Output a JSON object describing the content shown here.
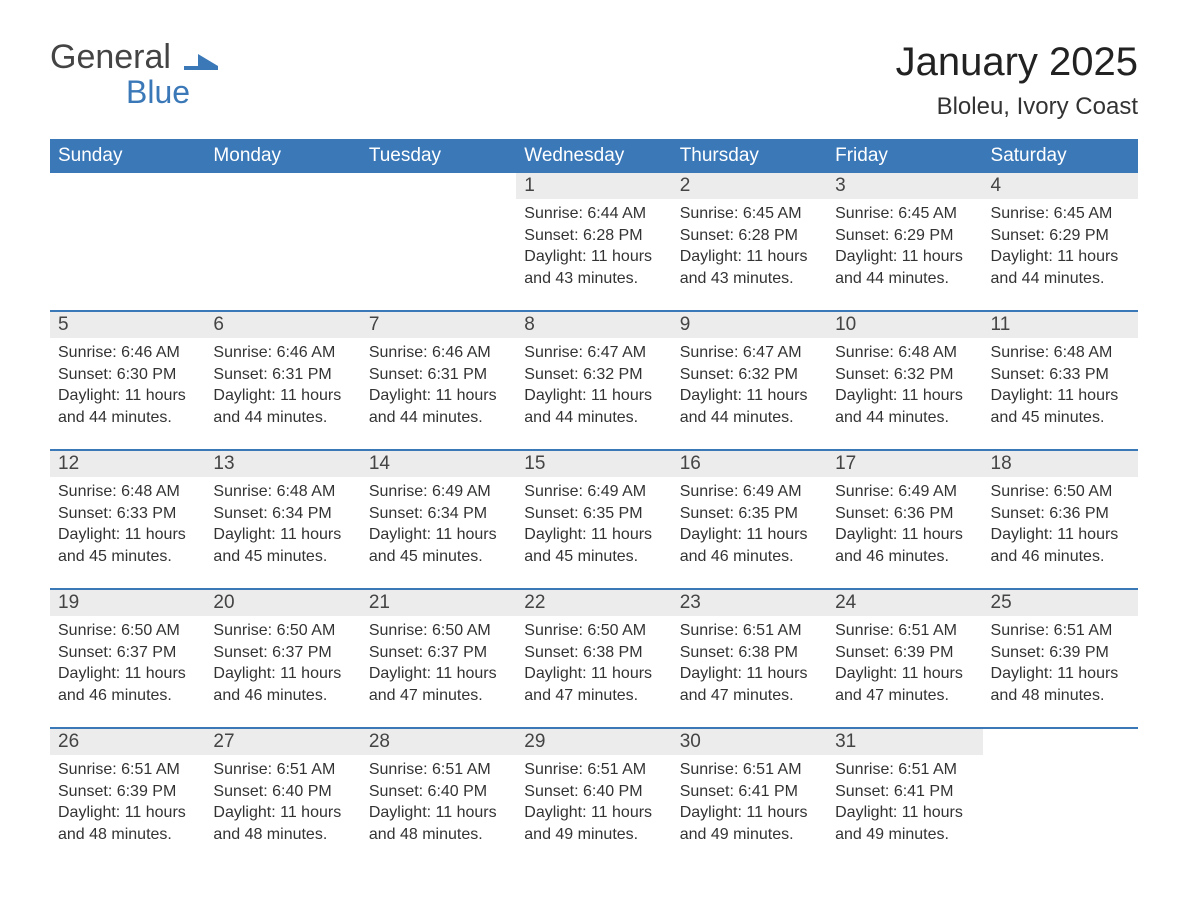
{
  "logo": {
    "word1": "General",
    "word2": "Blue",
    "shape_fill": "#3b78b8"
  },
  "title": "January 2025",
  "subtitle": "Bloleu, Ivory Coast",
  "colors": {
    "header_bg": "#3b78b8",
    "header_text": "#ffffff",
    "daynum_bg": "#ececec",
    "divider": "#3b78b8",
    "body_text": "#333333",
    "page_bg": "#ffffff"
  },
  "fonts": {
    "title_size_pt": 30,
    "subtitle_size_pt": 18,
    "header_size_pt": 14,
    "daynum_size_pt": 14,
    "cell_size_pt": 12
  },
  "dayHeaders": [
    "Sunday",
    "Monday",
    "Tuesday",
    "Wednesday",
    "Thursday",
    "Friday",
    "Saturday"
  ],
  "weeks": [
    [
      null,
      null,
      null,
      {
        "d": "1",
        "sr": "6:44 AM",
        "ss": "6:28 PM",
        "dl": "11 hours and 43 minutes."
      },
      {
        "d": "2",
        "sr": "6:45 AM",
        "ss": "6:28 PM",
        "dl": "11 hours and 43 minutes."
      },
      {
        "d": "3",
        "sr": "6:45 AM",
        "ss": "6:29 PM",
        "dl": "11 hours and 44 minutes."
      },
      {
        "d": "4",
        "sr": "6:45 AM",
        "ss": "6:29 PM",
        "dl": "11 hours and 44 minutes."
      }
    ],
    [
      {
        "d": "5",
        "sr": "6:46 AM",
        "ss": "6:30 PM",
        "dl": "11 hours and 44 minutes."
      },
      {
        "d": "6",
        "sr": "6:46 AM",
        "ss": "6:31 PM",
        "dl": "11 hours and 44 minutes."
      },
      {
        "d": "7",
        "sr": "6:46 AM",
        "ss": "6:31 PM",
        "dl": "11 hours and 44 minutes."
      },
      {
        "d": "8",
        "sr": "6:47 AM",
        "ss": "6:32 PM",
        "dl": "11 hours and 44 minutes."
      },
      {
        "d": "9",
        "sr": "6:47 AM",
        "ss": "6:32 PM",
        "dl": "11 hours and 44 minutes."
      },
      {
        "d": "10",
        "sr": "6:48 AM",
        "ss": "6:32 PM",
        "dl": "11 hours and 44 minutes."
      },
      {
        "d": "11",
        "sr": "6:48 AM",
        "ss": "6:33 PM",
        "dl": "11 hours and 45 minutes."
      }
    ],
    [
      {
        "d": "12",
        "sr": "6:48 AM",
        "ss": "6:33 PM",
        "dl": "11 hours and 45 minutes."
      },
      {
        "d": "13",
        "sr": "6:48 AM",
        "ss": "6:34 PM",
        "dl": "11 hours and 45 minutes."
      },
      {
        "d": "14",
        "sr": "6:49 AM",
        "ss": "6:34 PM",
        "dl": "11 hours and 45 minutes."
      },
      {
        "d": "15",
        "sr": "6:49 AM",
        "ss": "6:35 PM",
        "dl": "11 hours and 45 minutes."
      },
      {
        "d": "16",
        "sr": "6:49 AM",
        "ss": "6:35 PM",
        "dl": "11 hours and 46 minutes."
      },
      {
        "d": "17",
        "sr": "6:49 AM",
        "ss": "6:36 PM",
        "dl": "11 hours and 46 minutes."
      },
      {
        "d": "18",
        "sr": "6:50 AM",
        "ss": "6:36 PM",
        "dl": "11 hours and 46 minutes."
      }
    ],
    [
      {
        "d": "19",
        "sr": "6:50 AM",
        "ss": "6:37 PM",
        "dl": "11 hours and 46 minutes."
      },
      {
        "d": "20",
        "sr": "6:50 AM",
        "ss": "6:37 PM",
        "dl": "11 hours and 46 minutes."
      },
      {
        "d": "21",
        "sr": "6:50 AM",
        "ss": "6:37 PM",
        "dl": "11 hours and 47 minutes."
      },
      {
        "d": "22",
        "sr": "6:50 AM",
        "ss": "6:38 PM",
        "dl": "11 hours and 47 minutes."
      },
      {
        "d": "23",
        "sr": "6:51 AM",
        "ss": "6:38 PM",
        "dl": "11 hours and 47 minutes."
      },
      {
        "d": "24",
        "sr": "6:51 AM",
        "ss": "6:39 PM",
        "dl": "11 hours and 47 minutes."
      },
      {
        "d": "25",
        "sr": "6:51 AM",
        "ss": "6:39 PM",
        "dl": "11 hours and 48 minutes."
      }
    ],
    [
      {
        "d": "26",
        "sr": "6:51 AM",
        "ss": "6:39 PM",
        "dl": "11 hours and 48 minutes."
      },
      {
        "d": "27",
        "sr": "6:51 AM",
        "ss": "6:40 PM",
        "dl": "11 hours and 48 minutes."
      },
      {
        "d": "28",
        "sr": "6:51 AM",
        "ss": "6:40 PM",
        "dl": "11 hours and 48 minutes."
      },
      {
        "d": "29",
        "sr": "6:51 AM",
        "ss": "6:40 PM",
        "dl": "11 hours and 49 minutes."
      },
      {
        "d": "30",
        "sr": "6:51 AM",
        "ss": "6:41 PM",
        "dl": "11 hours and 49 minutes."
      },
      {
        "d": "31",
        "sr": "6:51 AM",
        "ss": "6:41 PM",
        "dl": "11 hours and 49 minutes."
      },
      null
    ]
  ],
  "labels": {
    "sunrise": "Sunrise:",
    "sunset": "Sunset:",
    "daylight": "Daylight:"
  }
}
